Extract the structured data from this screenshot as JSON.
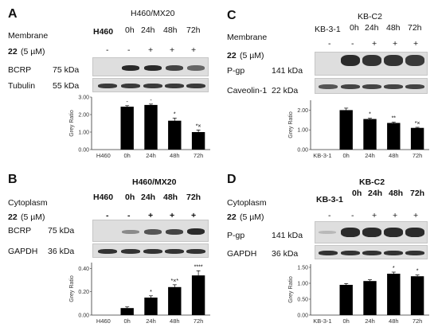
{
  "panels": [
    {
      "letter": "A",
      "compartment": "Membrane",
      "control_cell": "H460",
      "resistant_cell": "H460/MX20",
      "times": [
        "0h",
        "24h",
        "48h",
        "72h"
      ],
      "compound": "22",
      "dose": "(5 µM)",
      "compound_marks": [
        "-",
        "-",
        "+",
        "+",
        "+"
      ],
      "bands": [
        {
          "name": "BCRP",
          "kda": "75 kDa"
        },
        {
          "name": "Tubulin",
          "kda": "55 kDa"
        }
      ],
      "chart_data": {
        "type": "bar",
        "categories": [
          "H460",
          "0h",
          "24h",
          "48h",
          "72h"
        ],
        "values": [
          0,
          2.45,
          2.55,
          1.65,
          1.0
        ],
        "errors": [
          0,
          0.06,
          0.05,
          0.15,
          0.12
        ],
        "annotations": [
          "",
          "-",
          "-",
          "*",
          "*×"
        ],
        "ylabel": "Grey Ratio",
        "yticks": [
          "0.00",
          "1.00",
          "2.00",
          "3.00"
        ],
        "ylim": [
          0,
          3.0
        ]
      }
    },
    {
      "letter": "B",
      "compartment": "Cytoplasm",
      "control_cell": "H460",
      "resistant_cell": "H460/MX20",
      "times": [
        "0h",
        "24h",
        "48h",
        "72h"
      ],
      "compound": "22",
      "dose": "(5 µM)",
      "compound_marks": [
        "-",
        "-",
        "+",
        "+",
        "+"
      ],
      "bands": [
        {
          "name": "BCRP",
          "kda": "75 kDa"
        },
        {
          "name": "GAPDH",
          "kda": "36 kDa"
        }
      ],
      "chart_data": {
        "type": "bar",
        "categories": [
          "H460",
          "0h",
          "24h",
          "48h",
          "72h"
        ],
        "values": [
          0,
          0.06,
          0.15,
          0.24,
          0.34
        ],
        "errors": [
          0,
          0.01,
          0.015,
          0.02,
          0.04
        ],
        "annotations": [
          "",
          "",
          "*",
          "*×*",
          "****"
        ],
        "ylabel": "Grey Ratio",
        "yticks": [
          "0.00",
          "0.20",
          "0.40"
        ],
        "ylim": [
          0,
          0.45
        ]
      }
    },
    {
      "letter": "C",
      "compartment": "Membrane",
      "control_cell": "KB-3-1",
      "resistant_cell": "KB-C2",
      "times": [
        "0h",
        "24h",
        "48h",
        "72h"
      ],
      "compound": "22",
      "dose": "(5 µM)",
      "compound_marks": [
        "-",
        "-",
        "+",
        "+",
        "+"
      ],
      "bands": [
        {
          "name": "P-gp",
          "kda": "141 kDa"
        },
        {
          "name": "Caveolin-1",
          "kda": "22 kDa"
        }
      ],
      "chart_data": {
        "type": "bar",
        "categories": [
          "KB-3-1",
          "0h",
          "24h",
          "48h",
          "72h"
        ],
        "values": [
          0,
          2.0,
          1.55,
          1.35,
          1.1
        ],
        "errors": [
          0,
          0.1,
          0.04,
          0.04,
          0.03
        ],
        "annotations": [
          "",
          "",
          "*",
          "**",
          "*×"
        ],
        "ylabel": "Grey Ratio",
        "yticks": [
          "0.00",
          "1.00",
          "2.00"
        ],
        "ylim": [
          0,
          2.5
        ]
      }
    },
    {
      "letter": "D",
      "compartment": "Cytoplasm",
      "control_cell": "KB-3-1",
      "resistant_cell": "KB-C2",
      "times": [
        "0h",
        "24h",
        "48h",
        "72h"
      ],
      "compound": "22",
      "dose": "(5 µM)",
      "compound_marks": [
        "-",
        "-",
        "+",
        "+",
        "+"
      ],
      "bands": [
        {
          "name": "P-gp",
          "kda": "141 kDa"
        },
        {
          "name": "GAPDH",
          "kda": "36 kDa"
        }
      ],
      "chart_data": {
        "type": "bar",
        "categories": [
          "KB-3-1",
          "0h",
          "24h",
          "48h",
          "72h"
        ],
        "values": [
          0,
          0.95,
          1.07,
          1.3,
          1.22
        ],
        "errors": [
          0,
          0.04,
          0.04,
          0.05,
          0.04
        ],
        "annotations": [
          "",
          "",
          "",
          "*",
          "*"
        ],
        "ylabel": "Grey Ratio",
        "yticks": [
          "0.00",
          "0.50",
          "1.00",
          "1.50"
        ],
        "ylim": [
          0,
          1.6
        ]
      }
    }
  ]
}
